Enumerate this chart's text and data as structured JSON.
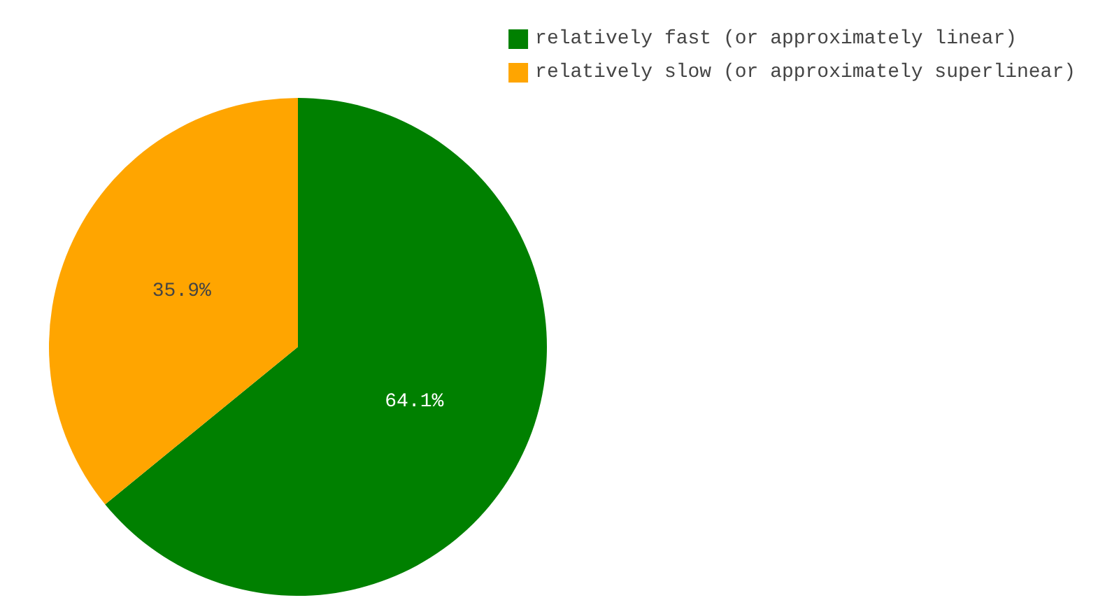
{
  "chart_data": {
    "type": "pie",
    "categories": [
      "relatively fast (or approximately linear)",
      "relatively slow (or approximately superlinear)"
    ],
    "values": [
      64.1,
      35.9
    ],
    "colors": [
      "#008000",
      "#ffa500"
    ],
    "value_labels": [
      "64.1%",
      "35.9%"
    ],
    "legend": "top right"
  }
}
